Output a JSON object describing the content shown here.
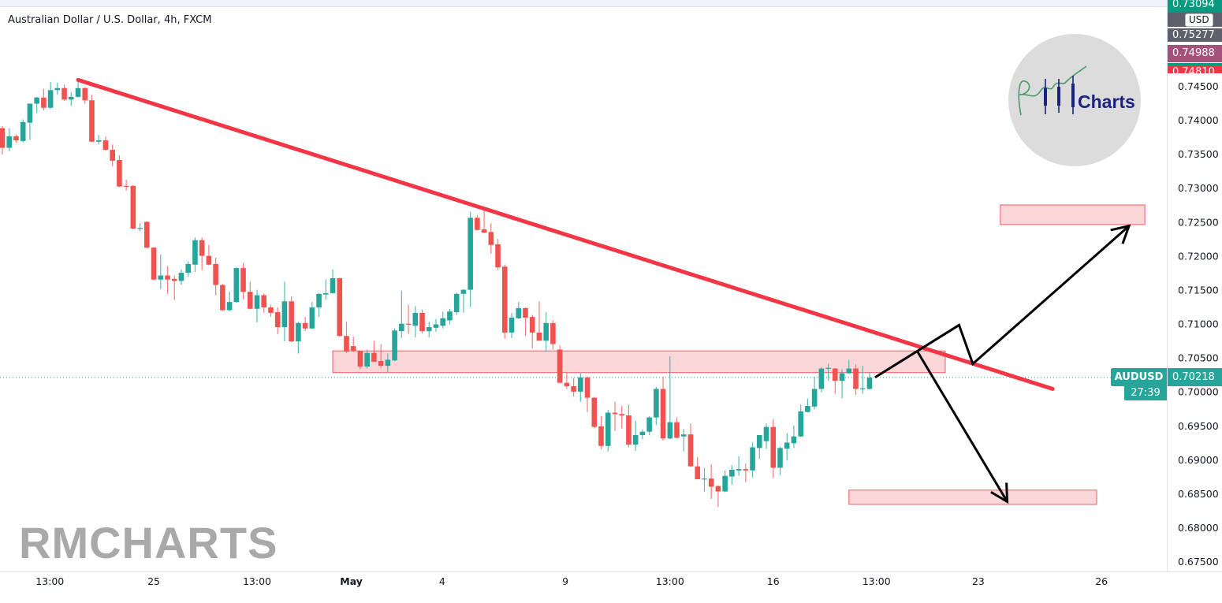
{
  "header": {
    "title": "Australian Dollar / U.S. Dollar, 4h, FXCM"
  },
  "price_tags": [
    {
      "value": "0.73094",
      "color": "#089981"
    },
    {
      "value": "0.75277",
      "color": "#5d606b"
    },
    {
      "value": "0.74988",
      "color": "#a4517b"
    },
    {
      "value": "0.74810",
      "color": "#f23645"
    }
  ],
  "currency_label": "USD",
  "symbol_label": "AUDUSD",
  "last_price": "0.70218",
  "countdown": "27:39",
  "logo": {
    "text": "Charts",
    "mark": "RM"
  },
  "watermark": "RMCHARTS",
  "colors": {
    "up": "#26a69a",
    "down": "#ef5350",
    "trendline": "#f23645",
    "zone_fill": "#f2364533",
    "arrows": "#000000",
    "last_price_line": "#26a69a"
  },
  "chart_data": {
    "type": "candlestick",
    "symbol": "AUDUSD",
    "interval": "4h",
    "ylim": [
      0.6725,
      0.758
    ],
    "y_ticks": [
      "0.67500",
      "0.68000",
      "0.68500",
      "0.69000",
      "0.69500",
      "0.70000",
      "0.70500",
      "0.71000",
      "0.71500",
      "0.72000",
      "0.72500",
      "0.73000",
      "0.73500",
      "0.74000",
      "0.74500"
    ],
    "x_ticks": [
      "13:00",
      "25",
      "13:00",
      "May",
      "4",
      "9",
      "13:00",
      "16",
      "13:00",
      "23",
      "26"
    ],
    "grid": false,
    "ohlc": [
      [
        0.7389,
        0.7392,
        0.735,
        0.736
      ],
      [
        0.736,
        0.7389,
        0.7355,
        0.7377
      ],
      [
        0.7377,
        0.738,
        0.7367,
        0.7371
      ],
      [
        0.737,
        0.7402,
        0.7368,
        0.7398
      ],
      [
        0.7397,
        0.7425,
        0.7372,
        0.7425
      ],
      [
        0.7425,
        0.7435,
        0.7411,
        0.7434
      ],
      [
        0.7434,
        0.7447,
        0.7415,
        0.7419
      ],
      [
        0.7419,
        0.7457,
        0.7417,
        0.7445
      ],
      [
        0.7445,
        0.7456,
        0.7438,
        0.7448
      ],
      [
        0.7448,
        0.7453,
        0.7429,
        0.7431
      ],
      [
        0.7431,
        0.7442,
        0.7422,
        0.7435
      ],
      [
        0.7435,
        0.7458,
        0.7434,
        0.7448
      ],
      [
        0.7448,
        0.7449,
        0.7425,
        0.743
      ],
      [
        0.743,
        0.7438,
        0.7368,
        0.7369
      ],
      [
        0.7369,
        0.7379,
        0.7365,
        0.7371
      ],
      [
        0.7371,
        0.7377,
        0.7356,
        0.7357
      ],
      [
        0.7357,
        0.7365,
        0.7333,
        0.7341
      ],
      [
        0.7342,
        0.7349,
        0.7302,
        0.7303
      ],
      [
        0.7304,
        0.7313,
        0.7297,
        0.7303
      ],
      [
        0.7304,
        0.7305,
        0.724,
        0.7241
      ],
      [
        0.7241,
        0.7249,
        0.7237,
        0.7242
      ],
      [
        0.7251,
        0.7252,
        0.7212,
        0.7213
      ],
      [
        0.7213,
        0.7214,
        0.7165,
        0.7166
      ],
      [
        0.7166,
        0.7203,
        0.7152,
        0.7172
      ],
      [
        0.7172,
        0.7186,
        0.7145,
        0.7166
      ],
      [
        0.7167,
        0.7172,
        0.7136,
        0.7164
      ],
      [
        0.7164,
        0.7181,
        0.7158,
        0.7176
      ],
      [
        0.7176,
        0.7193,
        0.717,
        0.7189
      ],
      [
        0.7188,
        0.7228,
        0.7177,
        0.7224
      ],
      [
        0.7224,
        0.7228,
        0.718,
        0.7201
      ],
      [
        0.7201,
        0.7217,
        0.7187,
        0.7188
      ],
      [
        0.7189,
        0.7198,
        0.7143,
        0.7158
      ],
      [
        0.7158,
        0.716,
        0.7119,
        0.7121
      ],
      [
        0.7121,
        0.7148,
        0.7119,
        0.7133
      ],
      [
        0.7133,
        0.7184,
        0.7132,
        0.7183
      ],
      [
        0.7183,
        0.7191,
        0.7137,
        0.7148
      ],
      [
        0.7148,
        0.7163,
        0.7122,
        0.7123
      ],
      [
        0.7123,
        0.7151,
        0.7103,
        0.7143
      ],
      [
        0.7143,
        0.7146,
        0.7117,
        0.7125
      ],
      [
        0.7125,
        0.7129,
        0.7111,
        0.7117
      ],
      [
        0.7118,
        0.7125,
        0.7086,
        0.7096
      ],
      [
        0.7096,
        0.7163,
        0.7075,
        0.7134
      ],
      [
        0.7134,
        0.7141,
        0.7074,
        0.7075
      ],
      [
        0.7075,
        0.7104,
        0.7057,
        0.7102
      ],
      [
        0.7102,
        0.7111,
        0.709,
        0.7094
      ],
      [
        0.7094,
        0.7133,
        0.7093,
        0.7125
      ],
      [
        0.7125,
        0.7146,
        0.7111,
        0.7145
      ],
      [
        0.7144,
        0.7166,
        0.7136,
        0.7146
      ],
      [
        0.7146,
        0.7181,
        0.7145,
        0.7168
      ],
      [
        0.7168,
        0.7169,
        0.7082,
        0.7083
      ],
      [
        0.7083,
        0.7104,
        0.7058,
        0.706
      ],
      [
        0.7068,
        0.7082,
        0.7059,
        0.7061
      ],
      [
        0.7061,
        0.7062,
        0.7034,
        0.7038
      ],
      [
        0.7038,
        0.7063,
        0.7035,
        0.7058
      ],
      [
        0.7058,
        0.7076,
        0.7045,
        0.7045
      ],
      [
        0.7046,
        0.7071,
        0.7036,
        0.7039
      ],
      [
        0.7039,
        0.7057,
        0.703,
        0.7048
      ],
      [
        0.7047,
        0.7094,
        0.7046,
        0.7091
      ],
      [
        0.709,
        0.715,
        0.708,
        0.7101
      ],
      [
        0.7101,
        0.7129,
        0.7086,
        0.71
      ],
      [
        0.7098,
        0.7127,
        0.7081,
        0.7117
      ],
      [
        0.7117,
        0.7122,
        0.7087,
        0.709
      ],
      [
        0.709,
        0.7104,
        0.7081,
        0.7096
      ],
      [
        0.7095,
        0.7108,
        0.7089,
        0.71
      ],
      [
        0.7098,
        0.7119,
        0.7094,
        0.7109
      ],
      [
        0.7106,
        0.7123,
        0.71,
        0.7119
      ],
      [
        0.7118,
        0.7147,
        0.7114,
        0.7145
      ],
      [
        0.7145,
        0.7152,
        0.7117,
        0.7151
      ],
      [
        0.7151,
        0.7266,
        0.7126,
        0.7257
      ],
      [
        0.7257,
        0.7261,
        0.7238,
        0.7239
      ],
      [
        0.724,
        0.7267,
        0.7235,
        0.7235
      ],
      [
        0.7236,
        0.7249,
        0.7204,
        0.7217
      ],
      [
        0.7218,
        0.7226,
        0.718,
        0.7184
      ],
      [
        0.7185,
        0.7188,
        0.7079,
        0.7088
      ],
      [
        0.7088,
        0.7117,
        0.708,
        0.711
      ],
      [
        0.7109,
        0.7133,
        0.7108,
        0.7124
      ],
      [
        0.7124,
        0.7125,
        0.7083,
        0.711
      ],
      [
        0.7111,
        0.7114,
        0.7065,
        0.7088
      ],
      [
        0.7088,
        0.7134,
        0.7076,
        0.7076
      ],
      [
        0.7076,
        0.7118,
        0.706,
        0.7102
      ],
      [
        0.7102,
        0.7106,
        0.7063,
        0.7071
      ],
      [
        0.7063,
        0.7069,
        0.7014,
        0.7014
      ],
      [
        0.7014,
        0.7029,
        0.7005,
        0.7009
      ],
      [
        0.7009,
        0.7021,
        0.6994,
        0.7001
      ],
      [
        0.7001,
        0.7028,
        0.6986,
        0.7022
      ],
      [
        0.7022,
        0.7023,
        0.6971,
        0.6992
      ],
      [
        0.6992,
        0.6993,
        0.6947,
        0.6949
      ],
      [
        0.695,
        0.6965,
        0.6916,
        0.6921
      ],
      [
        0.6921,
        0.6974,
        0.6913,
        0.697
      ],
      [
        0.697,
        0.6986,
        0.6943,
        0.6968
      ],
      [
        0.6968,
        0.698,
        0.6947,
        0.6966
      ],
      [
        0.6966,
        0.6982,
        0.6919,
        0.6923
      ],
      [
        0.6923,
        0.6958,
        0.6914,
        0.6937
      ],
      [
        0.6937,
        0.6945,
        0.6931,
        0.6942
      ],
      [
        0.6942,
        0.6965,
        0.6937,
        0.6963
      ],
      [
        0.6963,
        0.7008,
        0.6952,
        0.7005
      ],
      [
        0.7005,
        0.7023,
        0.6929,
        0.6932
      ],
      [
        0.6932,
        0.7053,
        0.6931,
        0.6956
      ],
      [
        0.6956,
        0.6963,
        0.6932,
        0.6933
      ],
      [
        0.6935,
        0.6946,
        0.6913,
        0.6938
      ],
      [
        0.6938,
        0.6954,
        0.689,
        0.6891
      ],
      [
        0.6891,
        0.6905,
        0.6872,
        0.6872
      ],
      [
        0.6872,
        0.6889,
        0.6854,
        0.6873
      ],
      [
        0.6873,
        0.6894,
        0.6843,
        0.6861
      ],
      [
        0.6862,
        0.6863,
        0.6831,
        0.6854
      ],
      [
        0.6854,
        0.6885,
        0.6853,
        0.6877
      ],
      [
        0.6876,
        0.6893,
        0.6864,
        0.6886
      ],
      [
        0.6885,
        0.6906,
        0.6877,
        0.6887
      ],
      [
        0.6887,
        0.6895,
        0.6868,
        0.6885
      ],
      [
        0.6885,
        0.6926,
        0.6875,
        0.6919
      ],
      [
        0.6918,
        0.693,
        0.6902,
        0.6937
      ],
      [
        0.6928,
        0.6954,
        0.6917,
        0.6949
      ],
      [
        0.6949,
        0.6961,
        0.6874,
        0.6889
      ],
      [
        0.6889,
        0.692,
        0.6878,
        0.6918
      ],
      [
        0.6917,
        0.694,
        0.69,
        0.6926
      ],
      [
        0.6925,
        0.6951,
        0.6918,
        0.6935
      ],
      [
        0.6935,
        0.6982,
        0.6934,
        0.6972
      ],
      [
        0.6971,
        0.6991,
        0.697,
        0.698
      ],
      [
        0.6979,
        0.7023,
        0.6975,
        0.7005
      ],
      [
        0.7005,
        0.7037,
        0.7,
        0.7035
      ],
      [
        0.7035,
        0.7042,
        0.7017,
        0.7036
      ],
      [
        0.7035,
        0.7036,
        0.6998,
        0.7017
      ],
      [
        0.7017,
        0.7034,
        0.6991,
        0.7028
      ],
      [
        0.7028,
        0.7048,
        0.7027,
        0.7035
      ],
      [
        0.7035,
        0.7041,
        0.6996,
        0.7005
      ],
      [
        0.7005,
        0.7039,
        0.6998,
        0.7006
      ],
      [
        0.7005,
        0.703,
        0.7004,
        0.70218
      ]
    ],
    "last_price": 0.70218,
    "annotations": {
      "trendline": {
        "from": {
          "bar": 11,
          "price": 0.746
        },
        "to": {
          "bar": 152.6,
          "price": 0.7005
        }
      },
      "zones": [
        {
          "name": "resistance",
          "bars": [
            48,
            137
          ],
          "prices": [
            0.7029,
            0.7061
          ]
        },
        {
          "name": "upper-target",
          "bars": [
            145,
            166
          ],
          "prices": [
            0.7247,
            0.7276
          ]
        },
        {
          "name": "lower-target",
          "bars": [
            123,
            159
          ],
          "prices": [
            0.6835,
            0.6856
          ]
        }
      ],
      "bullish_path": [
        {
          "bar": 126.8,
          "price": 0.7022
        },
        {
          "bar": 139,
          "price": 0.7099
        },
        {
          "bar": 141,
          "price": 0.7042
        },
        {
          "bar": 163.7,
          "price": 0.7245
        }
      ],
      "bearish_path": [
        {
          "bar": 132.9,
          "price": 0.7061
        },
        {
          "bar": 146,
          "price": 0.6839
        }
      ]
    }
  }
}
